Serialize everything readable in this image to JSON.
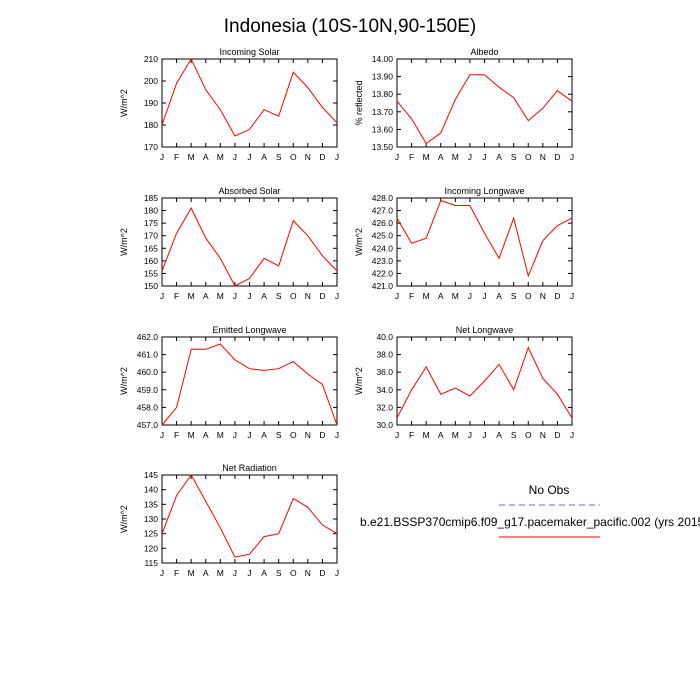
{
  "title": "Indonesia (10S-10N,90-150E)",
  "months": [
    "J",
    "F",
    "M",
    "A",
    "M",
    "J",
    "J",
    "A",
    "S",
    "O",
    "N",
    "D",
    "J"
  ],
  "colors": {
    "model": "#ff0000",
    "obs": "#6666ff",
    "axis": "#000000"
  },
  "chart_data": [
    {
      "type": "line",
      "title": "Incoming Solar",
      "ylabel": "W/m^2",
      "ylim": [
        170,
        210
      ],
      "yticks": [
        "170",
        "180",
        "190",
        "200",
        "210"
      ],
      "values": [
        180,
        199,
        210,
        196,
        187,
        175,
        178,
        187,
        184,
        204,
        197,
        188,
        181
      ]
    },
    {
      "type": "line",
      "title": "Albedo",
      "ylabel": "% reflected",
      "ylim": [
        13.5,
        14.0
      ],
      "yticks": [
        "13.50",
        "13.60",
        "13.70",
        "13.80",
        "13.90",
        "14.00"
      ],
      "values": [
        13.76,
        13.66,
        13.52,
        13.58,
        13.77,
        13.91,
        13.91,
        13.84,
        13.78,
        13.65,
        13.72,
        13.82,
        13.76
      ]
    },
    {
      "type": "line",
      "title": "Absorbed Solar",
      "ylabel": "W/m^2",
      "ylim": [
        150,
        185
      ],
      "yticks": [
        "150",
        "155",
        "160",
        "165",
        "170",
        "175",
        "180",
        "185"
      ],
      "values": [
        156,
        171,
        181,
        169,
        161,
        150,
        153,
        161,
        158,
        176,
        170,
        162,
        156
      ]
    },
    {
      "type": "line",
      "title": "Incoming Longwave",
      "ylabel": "W/m^2",
      "ylim": [
        421.0,
        428.0
      ],
      "yticks": [
        "421.0",
        "422.0",
        "423.0",
        "424.0",
        "425.0",
        "426.0",
        "427.0",
        "428.0"
      ],
      "values": [
        426.4,
        424.4,
        424.8,
        427.8,
        427.4,
        427.4,
        425.2,
        423.2,
        426.4,
        421.8,
        424.6,
        425.8,
        426.4
      ]
    },
    {
      "type": "line",
      "title": "Emitted Longwave",
      "ylabel": "W/m^2",
      "ylim": [
        457.0,
        462.0
      ],
      "yticks": [
        "457.0",
        "458.0",
        "459.0",
        "460.0",
        "461.0",
        "462.0"
      ],
      "values": [
        457.0,
        458.0,
        461.3,
        461.3,
        461.6,
        460.7,
        460.2,
        460.1,
        460.2,
        460.6,
        459.9,
        459.3,
        457.0
      ]
    },
    {
      "type": "line",
      "title": "Net Longwave",
      "ylabel": "W/m^2",
      "ylim": [
        30.0,
        40.0
      ],
      "yticks": [
        "30.0",
        "32.0",
        "34.0",
        "36.0",
        "38.0",
        "40.0"
      ],
      "values": [
        30.8,
        34.0,
        36.6,
        33.5,
        34.2,
        33.3,
        35.0,
        36.9,
        34.0,
        38.8,
        35.3,
        33.5,
        30.8
      ]
    },
    {
      "type": "line",
      "title": "Net Radiation",
      "ylabel": "W/m^2",
      "ylim": [
        115,
        145
      ],
      "yticks": [
        "115",
        "120",
        "125",
        "130",
        "135",
        "140",
        "145"
      ],
      "values": [
        125,
        138,
        145,
        136,
        127,
        117,
        118,
        124,
        125,
        137,
        134,
        128,
        125
      ]
    }
  ],
  "legend": {
    "obs_label": "No Obs",
    "model_label": "b.e21.BSSP370cmip6.f09_g17.pacemaker_pacific.002 (yrs 2015"
  }
}
